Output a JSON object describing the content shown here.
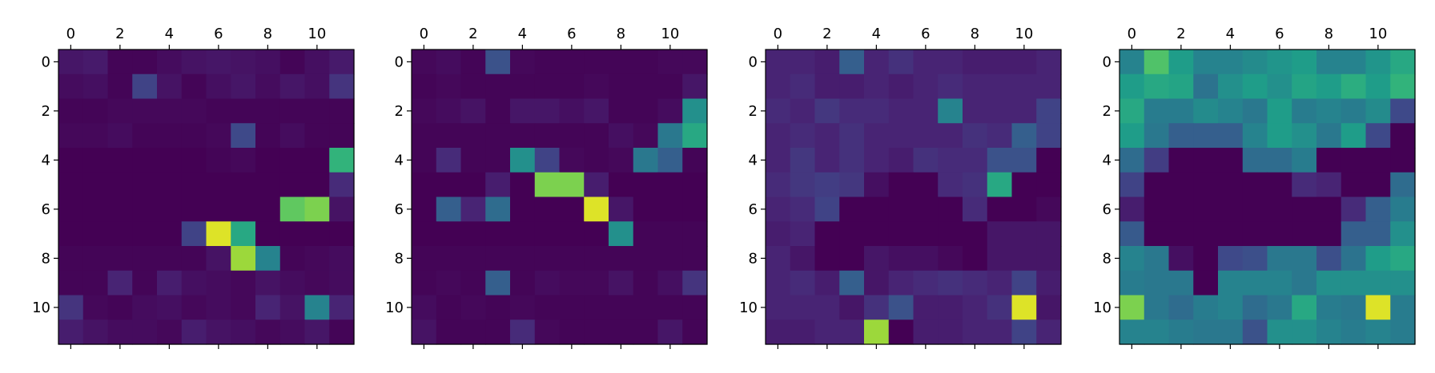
{
  "colormap": [
    "#440154",
    "#482878",
    "#3e4a89",
    "#31688e",
    "#26828e",
    "#1f9e89",
    "#35b779",
    "#6ece58",
    "#b5de2b",
    "#fde725"
  ],
  "chart_data": [
    {
      "type": "heatmap",
      "x_ticks": [
        "0",
        "2",
        "4",
        "6",
        "8",
        "10"
      ],
      "y_ticks": [
        "0",
        "2",
        "4",
        "6",
        "8",
        "10"
      ],
      "grid": false,
      "z": [
        [
          0.06,
          0.07,
          0.01,
          0.01,
          0.03,
          0.05,
          0.06,
          0.05,
          0.04,
          0.01,
          0.04,
          0.07
        ],
        [
          0.03,
          0.04,
          0.01,
          0.2,
          0.05,
          0.01,
          0.04,
          0.06,
          0.03,
          0.06,
          0.04,
          0.15
        ],
        [
          0.01,
          0.01,
          0.02,
          0.02,
          0.02,
          0.02,
          0.01,
          0.01,
          0.01,
          0.01,
          0.01,
          0.01
        ],
        [
          0.02,
          0.02,
          0.03,
          0.01,
          0.01,
          0.01,
          0.02,
          0.22,
          0.01,
          0.03,
          0.01,
          0.01
        ],
        [
          0.0,
          0.0,
          0.0,
          0.0,
          0.0,
          0.0,
          0.01,
          0.02,
          0.0,
          0.0,
          0.0,
          0.65
        ],
        [
          0.0,
          0.0,
          0.0,
          0.0,
          0.0,
          0.0,
          0.0,
          0.0,
          0.0,
          0.0,
          0.0,
          0.12
        ],
        [
          0.0,
          0.0,
          0.0,
          0.0,
          0.0,
          0.0,
          0.0,
          0.0,
          0.0,
          0.75,
          0.8,
          0.05
        ],
        [
          0.0,
          0.0,
          0.0,
          0.0,
          0.0,
          0.2,
          0.95,
          0.6,
          0.0,
          0.0,
          0.0,
          0.0
        ],
        [
          0.01,
          0.01,
          0.01,
          0.01,
          0.01,
          0.01,
          0.05,
          0.85,
          0.45,
          0.01,
          0.02,
          0.03
        ],
        [
          0.01,
          0.01,
          0.1,
          0.01,
          0.08,
          0.04,
          0.03,
          0.02,
          0.05,
          0.03,
          0.02,
          0.03
        ],
        [
          0.15,
          0.02,
          0.01,
          0.03,
          0.04,
          0.02,
          0.03,
          0.02,
          0.1,
          0.05,
          0.45,
          0.1
        ],
        [
          0.08,
          0.05,
          0.03,
          0.03,
          0.02,
          0.08,
          0.05,
          0.04,
          0.02,
          0.03,
          0.06,
          0.01
        ]
      ]
    },
    {
      "type": "heatmap",
      "x_ticks": [
        "0",
        "2",
        "4",
        "6",
        "8",
        "10"
      ],
      "y_ticks": [
        "0",
        "2",
        "4",
        "6",
        "8",
        "10"
      ],
      "grid": false,
      "z": [
        [
          0.02,
          0.03,
          0.01,
          0.25,
          0.02,
          0.01,
          0.01,
          0.01,
          0.01,
          0.01,
          0.02,
          0.02
        ],
        [
          0.01,
          0.02,
          0.01,
          0.01,
          0.01,
          0.01,
          0.01,
          0.02,
          0.01,
          0.01,
          0.01,
          0.06
        ],
        [
          0.02,
          0.03,
          0.05,
          0.01,
          0.06,
          0.06,
          0.04,
          0.06,
          0.01,
          0.01,
          0.03,
          0.5
        ],
        [
          0.01,
          0.01,
          0.01,
          0.01,
          0.01,
          0.01,
          0.01,
          0.01,
          0.04,
          0.02,
          0.4,
          0.6
        ],
        [
          0.01,
          0.12,
          0.01,
          0.01,
          0.5,
          0.2,
          0.02,
          0.01,
          0.02,
          0.4,
          0.3,
          0.01
        ],
        [
          0.0,
          0.0,
          0.0,
          0.08,
          0.0,
          0.8,
          0.8,
          0.08,
          0.0,
          0.0,
          0.0,
          0.0
        ],
        [
          0.0,
          0.3,
          0.1,
          0.35,
          0.0,
          0.0,
          0.0,
          0.95,
          0.06,
          0.0,
          0.0,
          0.0
        ],
        [
          0.0,
          0.0,
          0.0,
          0.0,
          0.0,
          0.0,
          0.0,
          0.0,
          0.5,
          0.01,
          0.01,
          0.01
        ],
        [
          0.01,
          0.01,
          0.01,
          0.01,
          0.01,
          0.01,
          0.01,
          0.01,
          0.01,
          0.01,
          0.01,
          0.01
        ],
        [
          0.01,
          0.02,
          0.01,
          0.3,
          0.01,
          0.03,
          0.02,
          0.02,
          0.05,
          0.01,
          0.04,
          0.15
        ],
        [
          0.03,
          0.01,
          0.02,
          0.01,
          0.02,
          0.01,
          0.01,
          0.01,
          0.01,
          0.01,
          0.01,
          0.01
        ],
        [
          0.05,
          0.01,
          0.01,
          0.01,
          0.12,
          0.02,
          0.01,
          0.01,
          0.01,
          0.01,
          0.06,
          0.01
        ]
      ]
    },
    {
      "type": "heatmap",
      "x_ticks": [
        "0",
        "2",
        "4",
        "6",
        "8",
        "10"
      ],
      "y_ticks": [
        "0",
        "2",
        "4",
        "6",
        "8",
        "10"
      ],
      "grid": false,
      "z": [
        [
          0.1,
          0.1,
          0.08,
          0.3,
          0.1,
          0.14,
          0.1,
          0.1,
          0.08,
          0.08,
          0.08,
          0.1
        ],
        [
          0.1,
          0.12,
          0.08,
          0.08,
          0.1,
          0.08,
          0.1,
          0.12,
          0.1,
          0.1,
          0.1,
          0.1
        ],
        [
          0.12,
          0.1,
          0.16,
          0.12,
          0.12,
          0.1,
          0.1,
          0.45,
          0.1,
          0.1,
          0.1,
          0.2
        ],
        [
          0.1,
          0.12,
          0.1,
          0.14,
          0.1,
          0.1,
          0.1,
          0.1,
          0.14,
          0.12,
          0.3,
          0.2
        ],
        [
          0.1,
          0.16,
          0.1,
          0.14,
          0.1,
          0.08,
          0.14,
          0.12,
          0.12,
          0.25,
          0.25,
          0.0
        ],
        [
          0.12,
          0.16,
          0.18,
          0.16,
          0.04,
          0.0,
          0.0,
          0.12,
          0.14,
          0.6,
          0.0,
          0.0
        ],
        [
          0.1,
          0.12,
          0.2,
          0.0,
          0.0,
          0.0,
          0.0,
          0.0,
          0.12,
          0.0,
          0.0,
          0.02
        ],
        [
          0.08,
          0.1,
          0.0,
          0.0,
          0.0,
          0.0,
          0.0,
          0.0,
          0.0,
          0.06,
          0.06,
          0.06
        ],
        [
          0.1,
          0.06,
          0.0,
          0.0,
          0.06,
          0.04,
          0.04,
          0.02,
          0.0,
          0.06,
          0.06,
          0.06
        ],
        [
          0.1,
          0.12,
          0.08,
          0.3,
          0.06,
          0.1,
          0.12,
          0.14,
          0.12,
          0.1,
          0.2,
          0.08
        ],
        [
          0.1,
          0.1,
          0.1,
          0.06,
          0.14,
          0.25,
          0.08,
          0.08,
          0.1,
          0.14,
          0.95,
          0.06
        ],
        [
          0.08,
          0.08,
          0.1,
          0.1,
          0.85,
          0.0,
          0.08,
          0.08,
          0.1,
          0.1,
          0.2,
          0.1
        ]
      ]
    },
    {
      "type": "heatmap",
      "x_ticks": [
        "0",
        "2",
        "4",
        "6",
        "8",
        "10"
      ],
      "y_ticks": [
        "0",
        "2",
        "4",
        "6",
        "8",
        "10"
      ],
      "grid": false,
      "z": [
        [
          0.45,
          0.72,
          0.55,
          0.45,
          0.45,
          0.48,
          0.52,
          0.55,
          0.45,
          0.45,
          0.52,
          0.6
        ],
        [
          0.55,
          0.6,
          0.58,
          0.38,
          0.5,
          0.55,
          0.5,
          0.58,
          0.55,
          0.62,
          0.55,
          0.65
        ],
        [
          0.6,
          0.42,
          0.42,
          0.48,
          0.45,
          0.4,
          0.55,
          0.42,
          0.45,
          0.42,
          0.48,
          0.22
        ],
        [
          0.55,
          0.4,
          0.3,
          0.3,
          0.3,
          0.45,
          0.55,
          0.5,
          0.4,
          0.55,
          0.22,
          0.0
        ],
        [
          0.35,
          0.18,
          0.0,
          0.0,
          0.0,
          0.35,
          0.35,
          0.42,
          0.0,
          0.0,
          0.0,
          0.0
        ],
        [
          0.2,
          0.0,
          0.0,
          0.0,
          0.0,
          0.0,
          0.0,
          0.12,
          0.1,
          0.0,
          0.0,
          0.35
        ],
        [
          0.08,
          0.0,
          0.0,
          0.0,
          0.0,
          0.0,
          0.0,
          0.0,
          0.0,
          0.12,
          0.3,
          0.42
        ],
        [
          0.28,
          0.0,
          0.0,
          0.0,
          0.0,
          0.0,
          0.0,
          0.0,
          0.0,
          0.3,
          0.3,
          0.5
        ],
        [
          0.45,
          0.4,
          0.04,
          0.0,
          0.22,
          0.24,
          0.4,
          0.4,
          0.24,
          0.38,
          0.55,
          0.6
        ],
        [
          0.42,
          0.4,
          0.4,
          0.0,
          0.45,
          0.45,
          0.45,
          0.4,
          0.5,
          0.5,
          0.5,
          0.5
        ],
        [
          0.8,
          0.4,
          0.35,
          0.42,
          0.45,
          0.35,
          0.4,
          0.6,
          0.42,
          0.4,
          0.95,
          0.42
        ],
        [
          0.45,
          0.45,
          0.42,
          0.4,
          0.4,
          0.25,
          0.5,
          0.5,
          0.45,
          0.42,
          0.45,
          0.42
        ]
      ]
    }
  ]
}
